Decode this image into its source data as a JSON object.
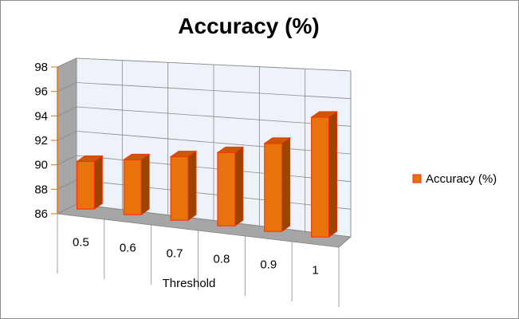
{
  "chart_data": {
    "type": "bar",
    "title": "Accuracy (%)",
    "xlabel": "Threshold",
    "ylabel": "",
    "categories": [
      "0.5",
      "0.6",
      "0.7",
      "0.8",
      "0.9",
      "1"
    ],
    "series": [
      {
        "name": "Accuracy (%)",
        "values": [
          89.9,
          90.5,
          91.2,
          92.0,
          93.2,
          95.8
        ]
      }
    ],
    "ylim": [
      86,
      98
    ],
    "yticks": [
      "86",
      "88",
      "90",
      "92",
      "94",
      "96",
      "98"
    ],
    "grid": true,
    "legend": "right",
    "colors": {
      "bar_fill": "#E8720C",
      "bar_top": "#C85A05",
      "bar_side": "#9A4400",
      "bar_edge": "#FF2A00"
    }
  }
}
